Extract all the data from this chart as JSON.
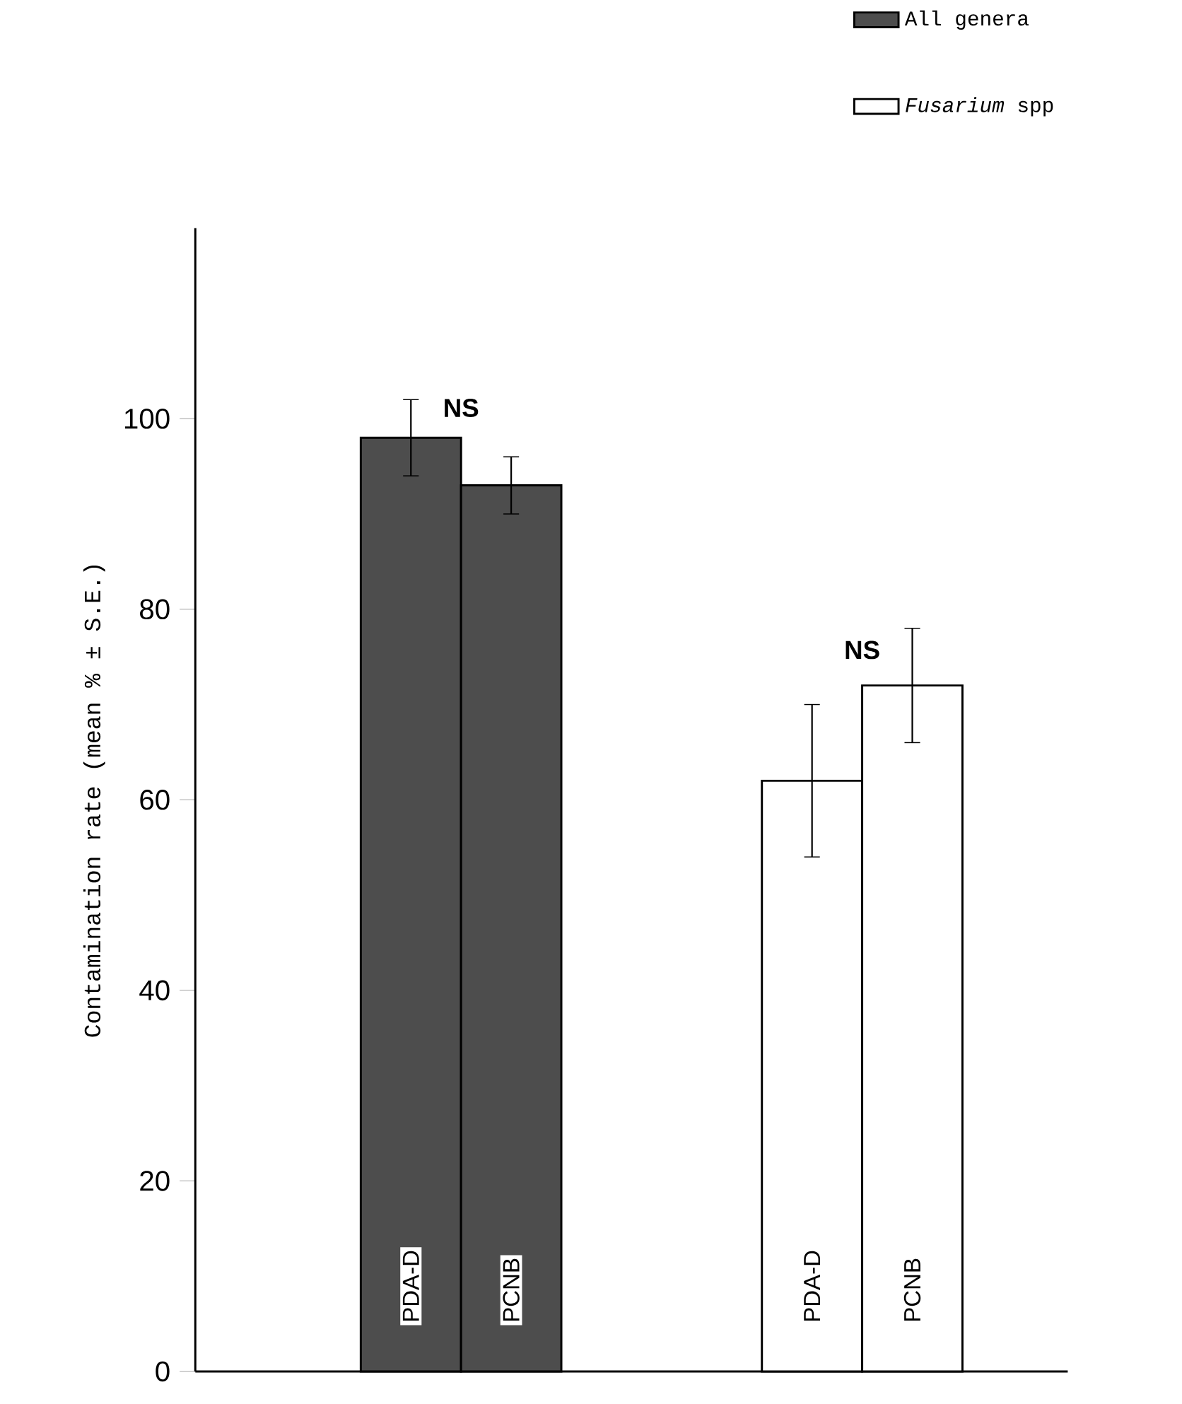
{
  "chart_data": {
    "type": "bar",
    "ylabel": "Contamination rate (mean % ± S.E.)",
    "categories": [
      "PDA-D",
      "PCNB",
      "PDA-D",
      "PCNB"
    ],
    "series": [
      {
        "name": "All genera",
        "color": "#4d4d4d",
        "values": [
          98,
          93,
          null,
          null
        ],
        "errors": [
          4,
          3,
          null,
          null
        ]
      },
      {
        "name": "*Fusarium* spp",
        "color": "#ffffff",
        "values": [
          null,
          null,
          62,
          72
        ],
        "errors": [
          null,
          null,
          8,
          6
        ]
      }
    ],
    "annotations": [
      "NS",
      "NS"
    ],
    "ylim": [
      0,
      120
    ],
    "yticks": [
      0,
      20,
      40,
      60,
      80,
      100
    ],
    "legend": "top right",
    "grid": false
  }
}
